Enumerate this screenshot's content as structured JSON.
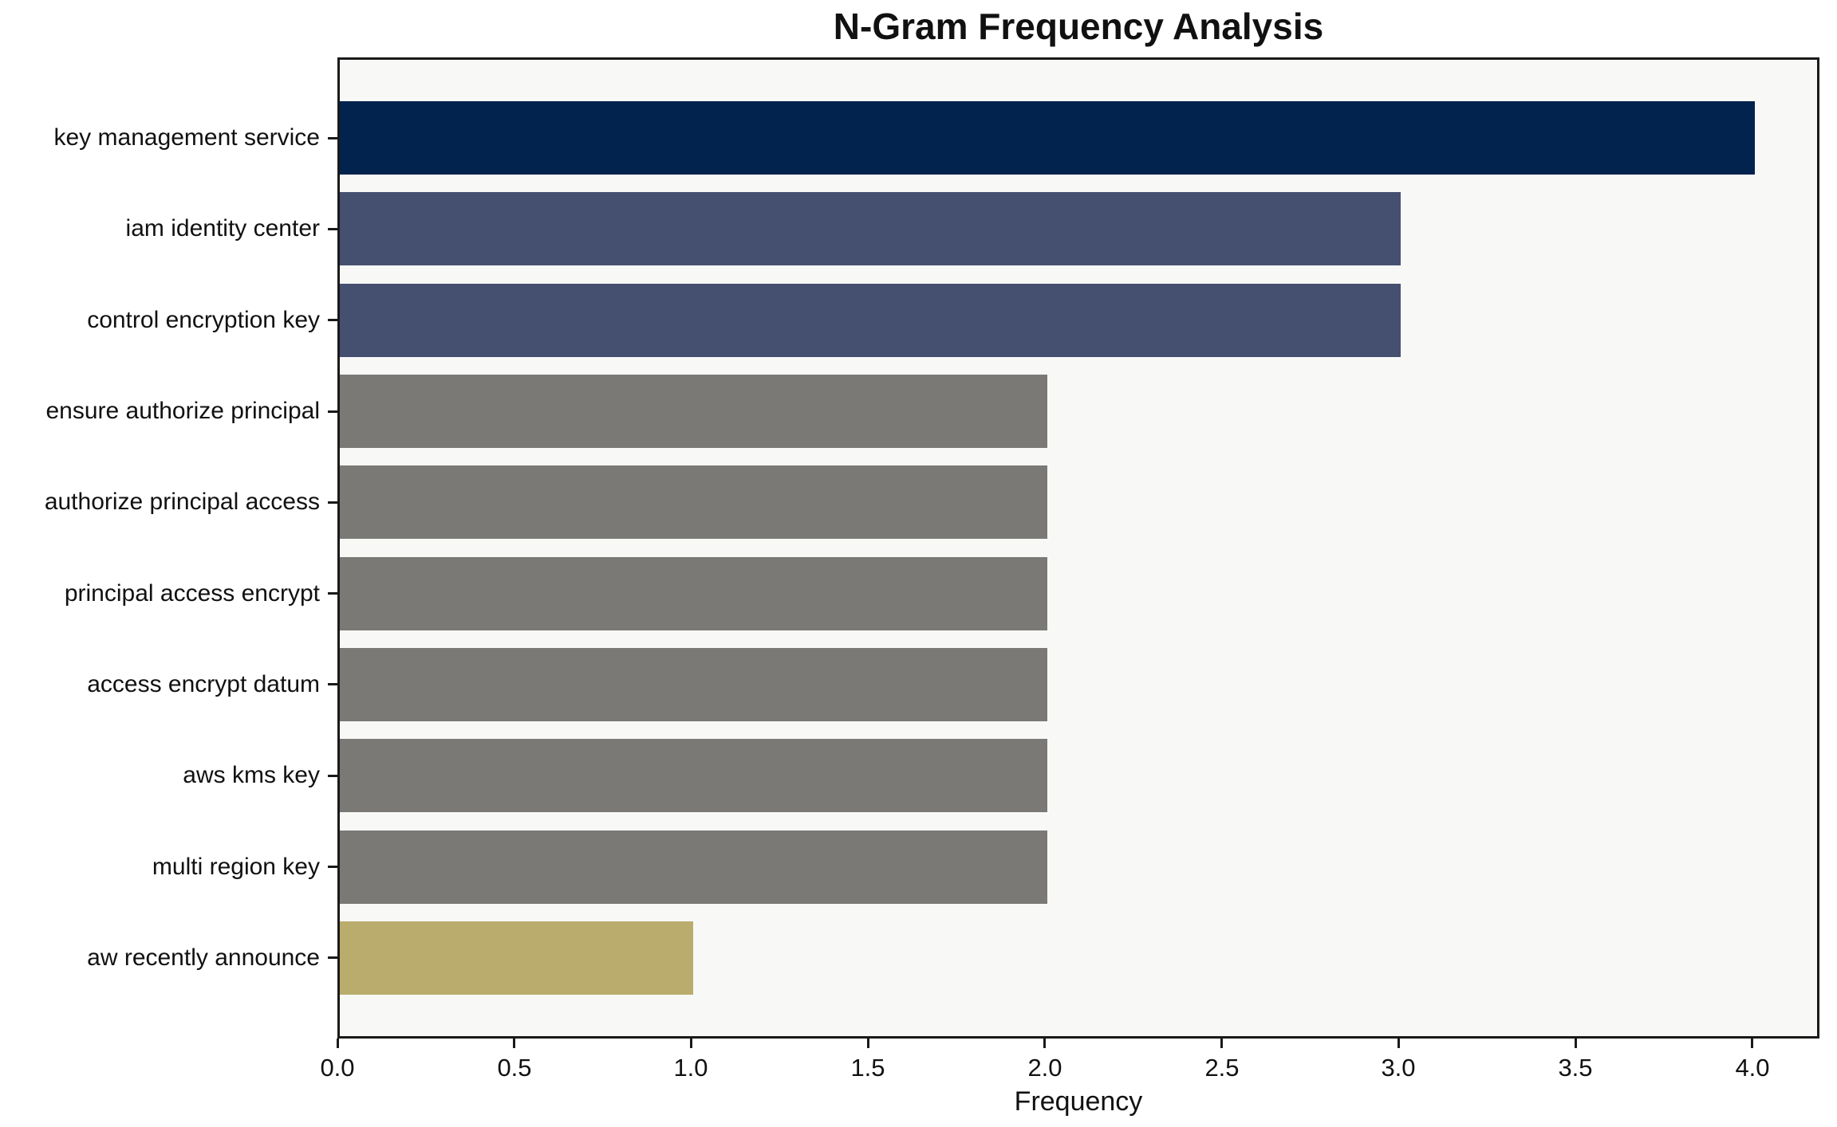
{
  "chart_data": {
    "type": "bar",
    "orientation": "horizontal",
    "title": "N-Gram Frequency Analysis",
    "xlabel": "Frequency",
    "ylabel": "",
    "categories": [
      "key management service",
      "iam identity center",
      "control encryption key",
      "ensure authorize principal",
      "authorize principal access",
      "principal access encrypt",
      "access encrypt datum",
      "aws kms key",
      "multi region key",
      "aw recently announce"
    ],
    "values": [
      4,
      3,
      3,
      2,
      2,
      2,
      2,
      2,
      2,
      1
    ],
    "bar_colors": [
      "#02234d",
      "#455070",
      "#455070",
      "#7a7975",
      "#7a7975",
      "#7a7975",
      "#7a7975",
      "#7a7975",
      "#7a7975",
      "#b9ac6c"
    ],
    "x_tick_labels": [
      "0.0",
      "0.5",
      "1.0",
      "1.5",
      "2.0",
      "2.5",
      "3.0",
      "3.5",
      "4.0"
    ],
    "x_tick_values": [
      0,
      0.5,
      1.0,
      1.5,
      2.0,
      2.5,
      3.0,
      3.5,
      4.0
    ],
    "xlim": [
      0,
      4.19
    ],
    "grid": false,
    "legend": null,
    "plot_background": "#f8f8f7",
    "figure_background": "#ffffff",
    "axis_color": "#1a1a1a"
  }
}
